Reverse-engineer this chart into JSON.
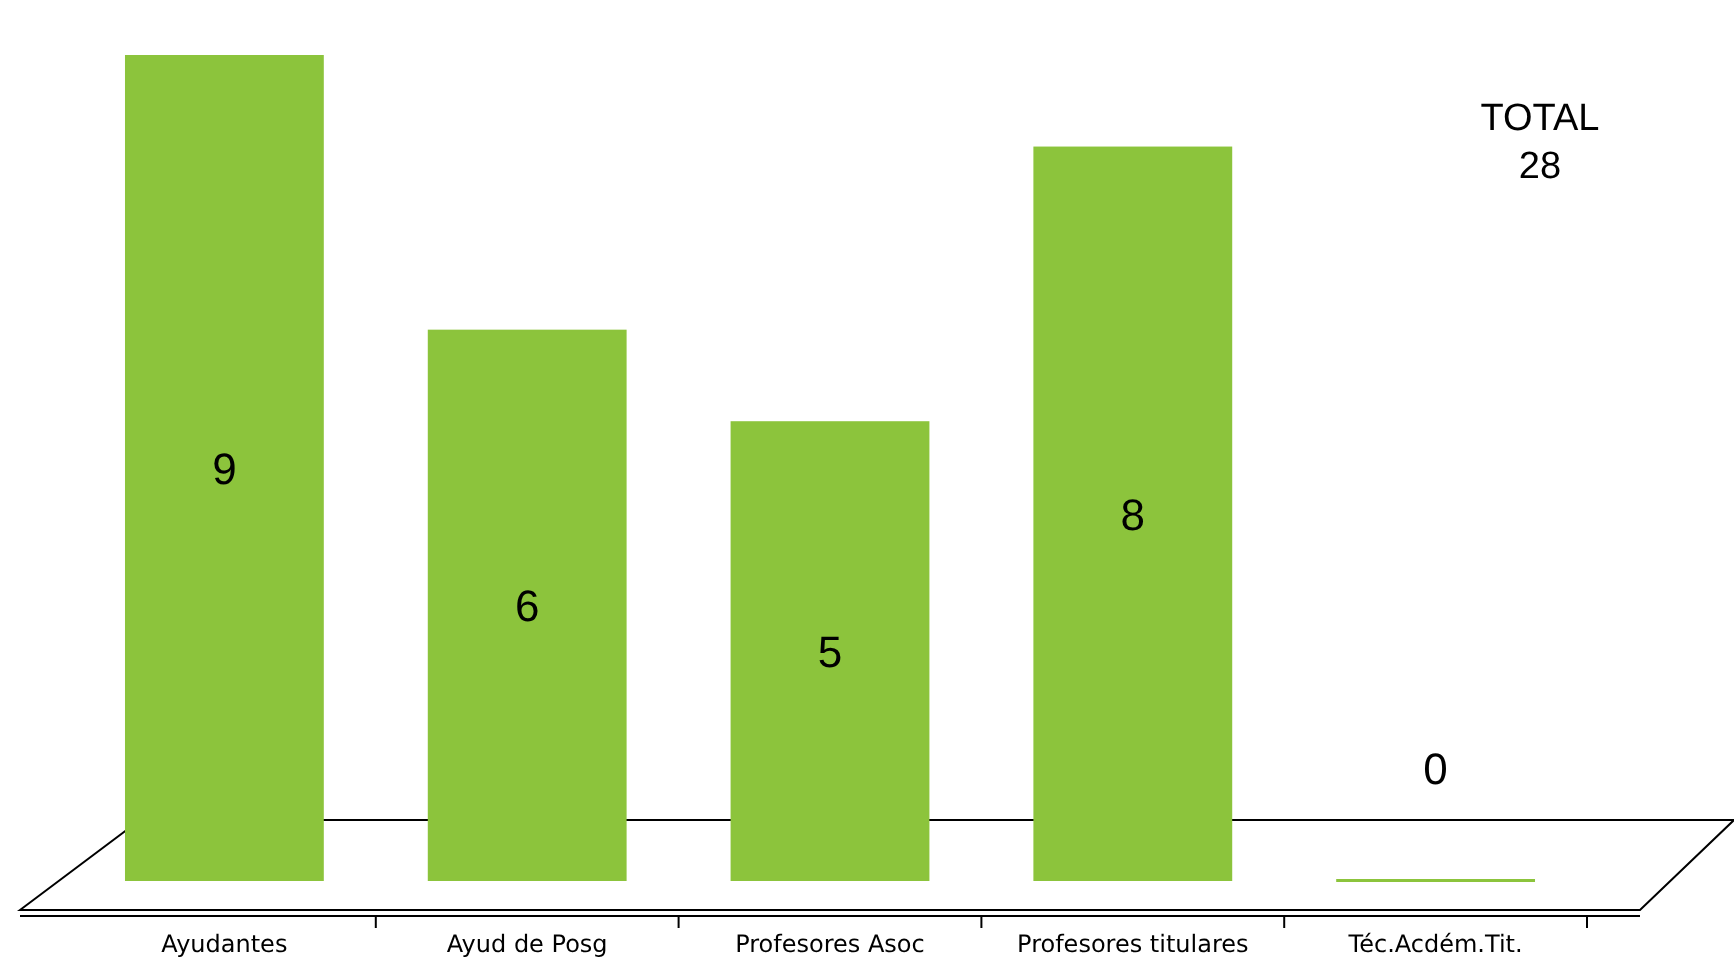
{
  "chart_data": {
    "type": "bar",
    "categories": [
      "Ayudantes",
      "Ayud de Posg",
      "Profesores Asoc",
      "Profesores titulares",
      "Téc.Acdém.Tit."
    ],
    "values": [
      9,
      6,
      5,
      8,
      0
    ],
    "color": "#8cc43c",
    "data_labels": true,
    "annotations": [
      "TOTAL\n28"
    ]
  }
}
